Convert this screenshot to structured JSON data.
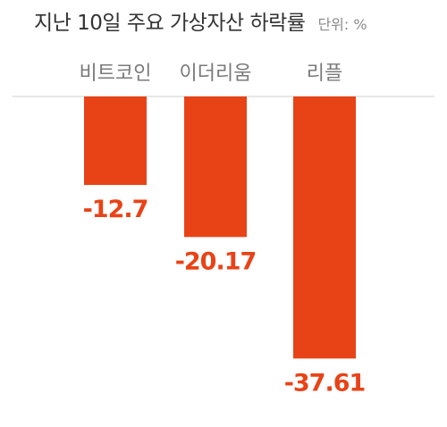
{
  "header": {
    "title": "지난 10일 주요 가상자산 하락률",
    "unit": "단위: %"
  },
  "colors": {
    "bar": "#E84317",
    "value_label": "#E84317",
    "category_label": "#7a7a7a",
    "baseline": "#cfcfcf"
  },
  "chart_data": {
    "type": "bar",
    "title": "지난 10일 주요 가상자산 하락률",
    "unit": "%",
    "categories": [
      "비트코인",
      "이더리움",
      "리플"
    ],
    "values": [
      -12.7,
      -20.17,
      -37.61
    ],
    "value_labels": [
      "-12.7",
      "-20.17",
      "-37.61"
    ],
    "ylim": [
      -40,
      0
    ],
    "grid": false,
    "legend": "none"
  }
}
